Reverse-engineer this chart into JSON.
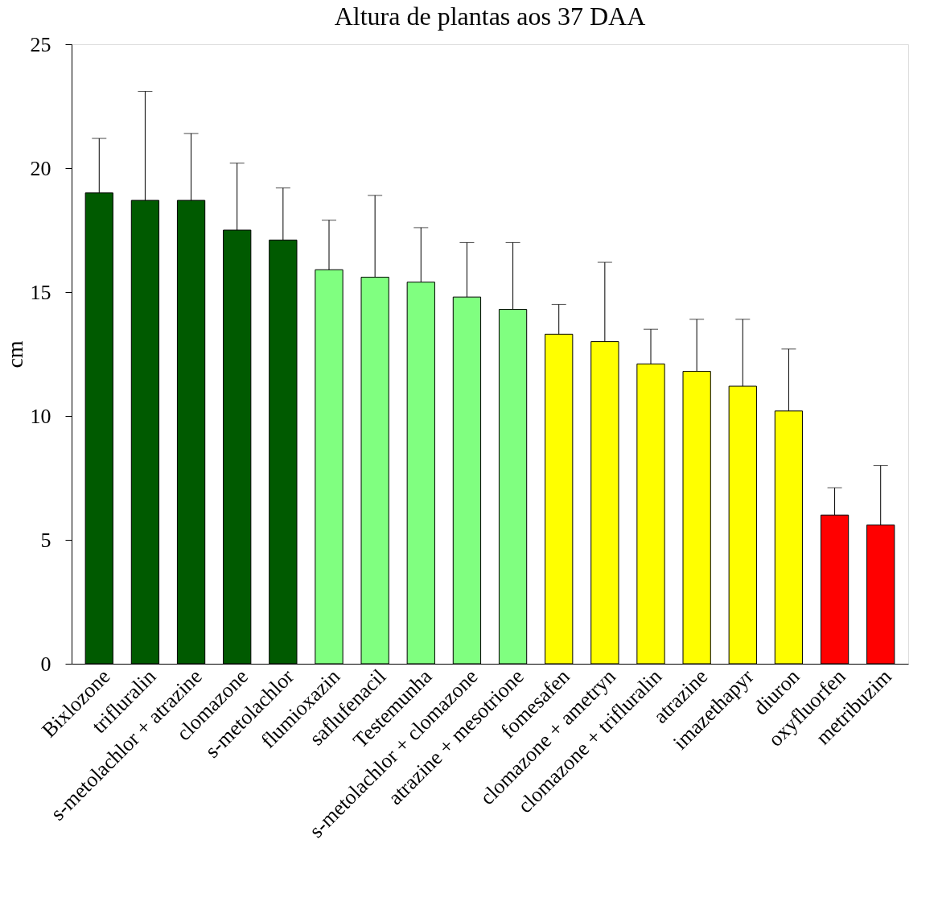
{
  "chart_data": {
    "type": "bar",
    "title": "Altura de plantas aos 37 DAA",
    "ylabel": "cm",
    "categories": [
      "Bixlozone",
      "trifluralin",
      "s-metolachlor + atrazine",
      "clomazone",
      "s-metolachlor",
      "flumioxazin",
      "saflufenacil",
      "Testemunha",
      "s-metolachlor + clomazone",
      "atrazine + mesotrione",
      "fomesafen",
      "clomazone + ametryn",
      "clomazone + trifluralin",
      "atrazine",
      "imazethapyr",
      "diuron",
      "oxyfluorfen",
      "metribuzim"
    ],
    "values": [
      19.0,
      18.7,
      18.7,
      17.5,
      17.1,
      15.9,
      15.6,
      15.4,
      14.8,
      14.3,
      13.3,
      13.0,
      12.1,
      11.8,
      11.2,
      10.2,
      6.0,
      5.6
    ],
    "errors": [
      [
        19.0,
        21.2
      ],
      [
        18.7,
        23.1
      ],
      [
        18.7,
        21.4
      ],
      [
        17.5,
        20.2
      ],
      [
        17.1,
        19.2
      ],
      [
        15.9,
        17.9
      ],
      [
        15.6,
        18.9
      ],
      [
        15.4,
        17.6
      ],
      [
        14.8,
        17.0
      ],
      [
        14.3,
        17.0
      ],
      [
        13.3,
        14.5
      ],
      [
        13.0,
        16.2
      ],
      [
        12.1,
        13.5
      ],
      [
        11.8,
        13.9
      ],
      [
        11.2,
        13.9
      ],
      [
        10.2,
        12.7
      ],
      [
        6.0,
        7.1
      ],
      [
        5.6,
        8.0
      ]
    ],
    "colors": [
      "#005a00",
      "#005a00",
      "#005a00",
      "#005a00",
      "#005a00",
      "#80ff80",
      "#80ff80",
      "#80ff80",
      "#80ff80",
      "#80ff80",
      "#ffff00",
      "#ffff00",
      "#ffff00",
      "#ffff00",
      "#ffff00",
      "#ffff00",
      "#ff0000",
      "#ff0000"
    ],
    "ylim": [
      0,
      25
    ],
    "yticks": [
      0,
      5,
      10,
      15,
      20,
      25
    ],
    "grid": false
  }
}
